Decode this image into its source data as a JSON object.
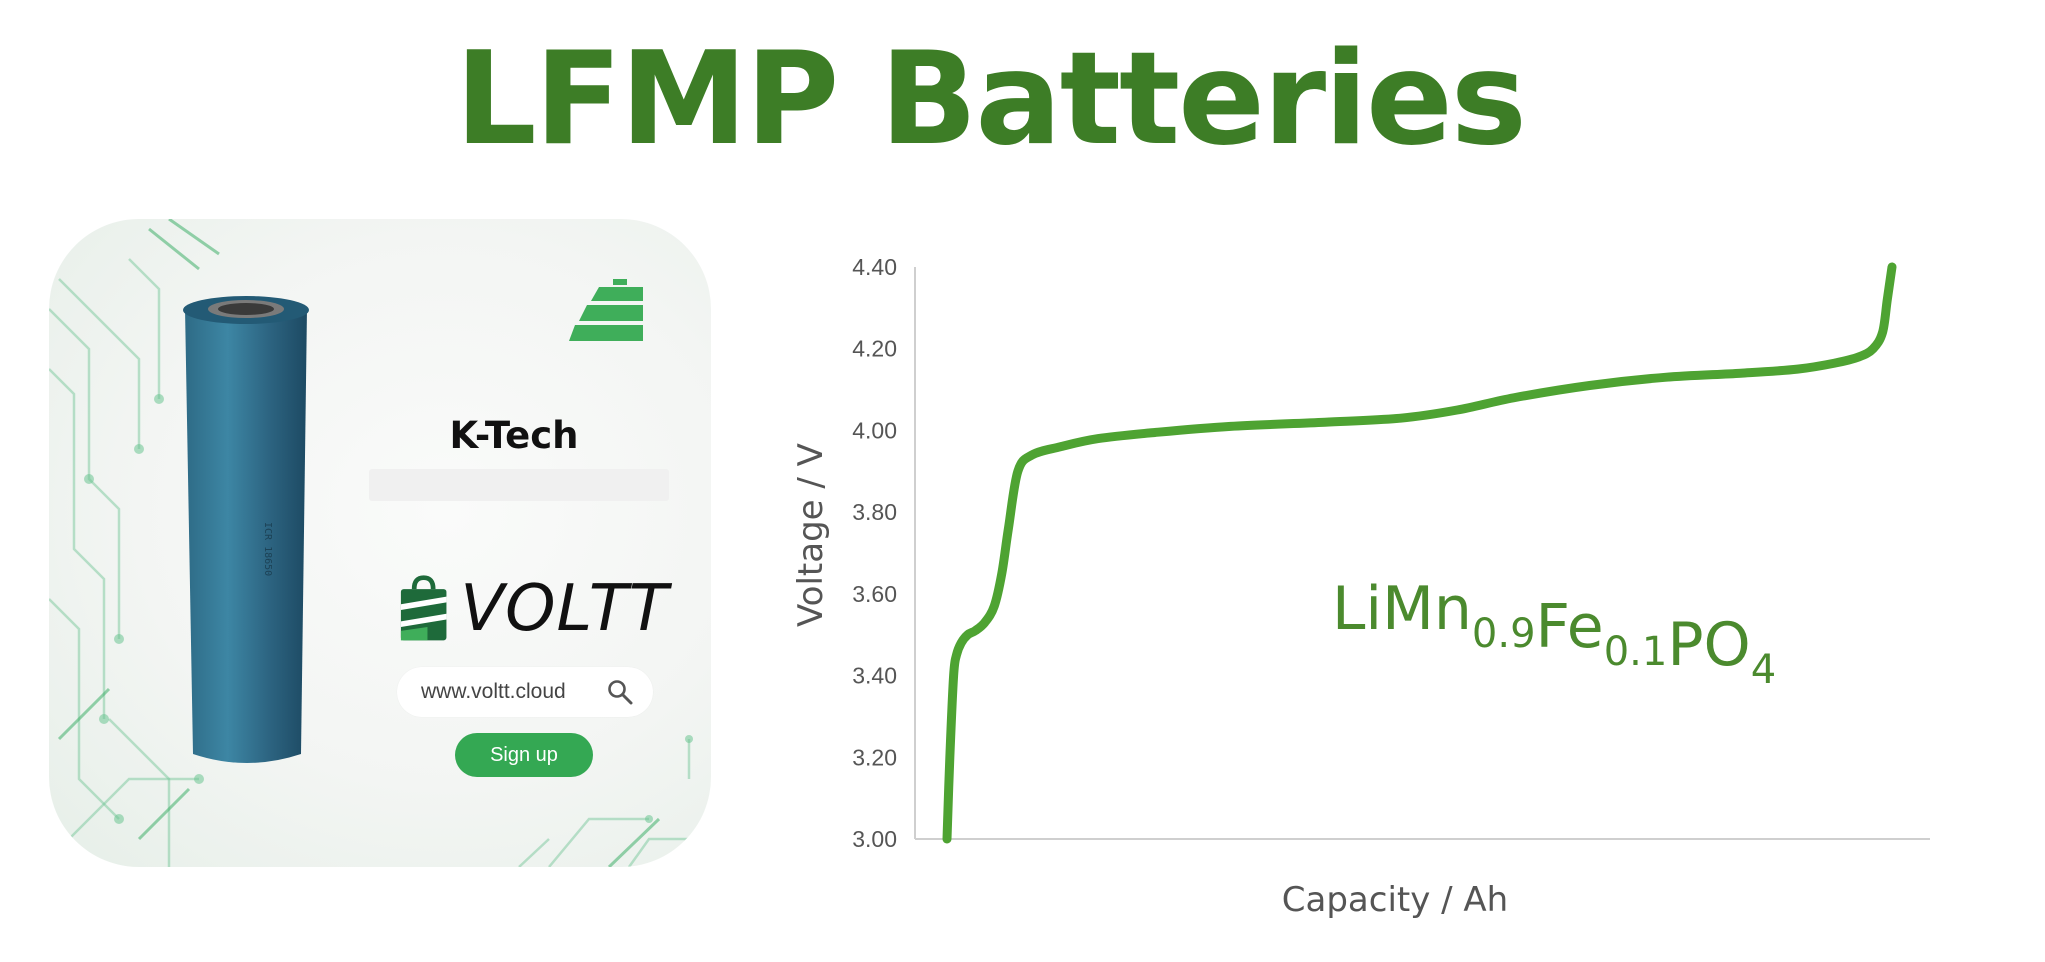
{
  "title": "LFMP Batteries",
  "card": {
    "brand": "K-Tech",
    "logo_text": "VOLTT",
    "url": "www.voltt.cloud",
    "signup_label": "Sign up",
    "accent_color": "#34a853",
    "icons": [
      "battery-logo-icon",
      "search-icon"
    ]
  },
  "chart_data": {
    "type": "line",
    "xlabel": "Capacity / Ah",
    "ylabel": "Voltage / V",
    "ylim": [
      3.0,
      4.4
    ],
    "yticks": [
      "4.40",
      "4.20",
      "4.00",
      "3.80",
      "3.60",
      "3.40",
      "3.20",
      "3.00"
    ],
    "grid": false,
    "line_color": "#4ea332",
    "annotation": {
      "parts": [
        {
          "text": "LiMn",
          "sub": false
        },
        {
          "text": "0.9",
          "sub": true
        },
        {
          "text": "Fe",
          "sub": false
        },
        {
          "text": "0.1",
          "sub": true
        },
        {
          "text": "PO",
          "sub": false
        },
        {
          "text": "4",
          "sub": true
        }
      ]
    },
    "series": [
      {
        "x": [
          0.0,
          0.003,
          0.007,
          0.01,
          0.015,
          0.022,
          0.03,
          0.04,
          0.05,
          0.058,
          0.065,
          0.075,
          0.09,
          0.12,
          0.16,
          0.22,
          0.3,
          0.4,
          0.48,
          0.54,
          0.6,
          0.68,
          0.76,
          0.84,
          0.9,
          0.94,
          0.965,
          0.98,
          0.99,
          0.995,
          1.0
        ],
        "y": [
          3.0,
          3.2,
          3.4,
          3.45,
          3.48,
          3.5,
          3.51,
          3.53,
          3.57,
          3.65,
          3.76,
          3.9,
          3.94,
          3.96,
          3.98,
          3.995,
          4.01,
          4.02,
          4.03,
          4.05,
          4.08,
          4.11,
          4.13,
          4.14,
          4.15,
          4.165,
          4.18,
          4.2,
          4.24,
          4.32,
          4.4
        ]
      }
    ]
  }
}
